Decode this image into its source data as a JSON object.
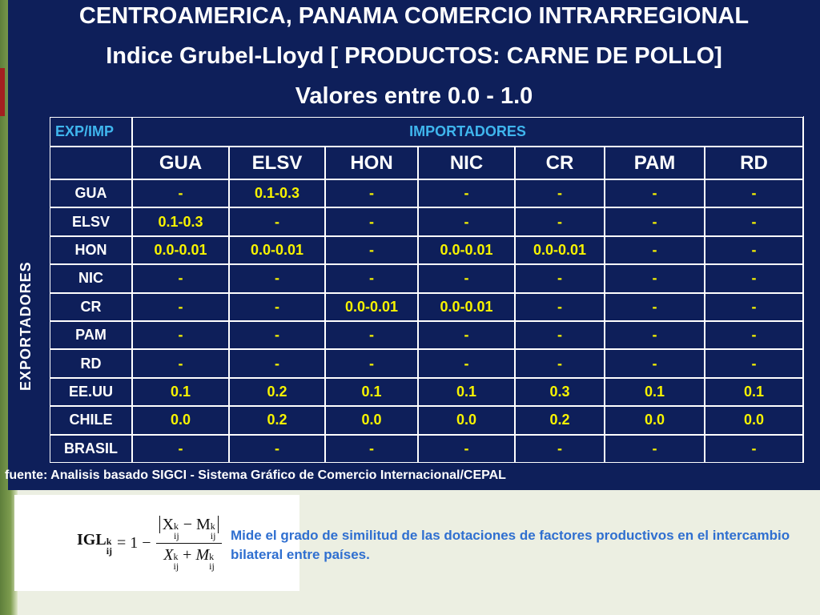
{
  "title": {
    "line1": "CENTROAMERICA, PANAMA  COMERCIO INTRARREGIONAL",
    "line2": "Indice Grubel-Lloyd [ PRODUCTOS: CARNE DE POLLO]",
    "line3": "Valores entre 0.0 - 1.0"
  },
  "table": {
    "corner_label": "EXP/IMP",
    "importers_label": "IMPORTADORES",
    "exporters_label": "EXPORTADORES",
    "columns": [
      "GUA",
      "ELSV",
      "HON",
      "NIC",
      "CR",
      "PAM",
      "RD"
    ],
    "rows": [
      {
        "label": "GUA",
        "values": [
          "-",
          "0.1-0.3",
          "-",
          "-",
          "-",
          "-",
          "-"
        ]
      },
      {
        "label": "ELSV",
        "values": [
          "0.1-0.3",
          "-",
          "-",
          "-",
          "-",
          "-",
          "-"
        ]
      },
      {
        "label": "HON",
        "values": [
          "0.0-0.01",
          "0.0-0.01",
          "-",
          "0.0-0.01",
          "0.0-0.01",
          "-",
          "-"
        ]
      },
      {
        "label": "NIC",
        "values": [
          "-",
          "-",
          "-",
          "-",
          "-",
          "-",
          "-"
        ]
      },
      {
        "label": "CR",
        "values": [
          "-",
          "-",
          "0.0-0.01",
          "0.0-0.01",
          "-",
          "-",
          "-"
        ]
      },
      {
        "label": "PAM",
        "values": [
          "-",
          "-",
          "-",
          "-",
          "-",
          "-",
          "-"
        ]
      },
      {
        "label": "RD",
        "values": [
          "-",
          "-",
          "-",
          "-",
          "-",
          "-",
          "-"
        ]
      },
      {
        "label": "EE.UU",
        "values": [
          "0.1",
          "0.2",
          "0.1",
          "0.1",
          "0.3",
          "0.1",
          "0.1"
        ]
      },
      {
        "label": "CHILE",
        "values": [
          "0.0",
          "0.2",
          "0.0",
          "0.0",
          "0.2",
          "0.0",
          "0.0"
        ]
      },
      {
        "label": "BRASIL",
        "values": [
          "-",
          "-",
          "-",
          "-",
          "-",
          "-",
          "-"
        ]
      }
    ]
  },
  "source": "fuente: Analisis basado SIGCI - Sistema Gráfico de Comercio Internacional/CEPAL",
  "formula": {
    "lhs": "IGL",
    "equals_one_minus": "= 1 −",
    "sup": "k",
    "sub": "ij",
    "num_x": "X",
    "num_m": "M",
    "den_x": "X",
    "den_m": "M"
  },
  "description": "Mide el grado de similitud de las dotaciones de factores productivos en el intercambio bilateral entre países.",
  "colors": {
    "background_navy": "#0e1f5a",
    "value_yellow": "#f7f300",
    "header_blue": "#3fb6ee",
    "description_blue": "#2f6fd0"
  }
}
